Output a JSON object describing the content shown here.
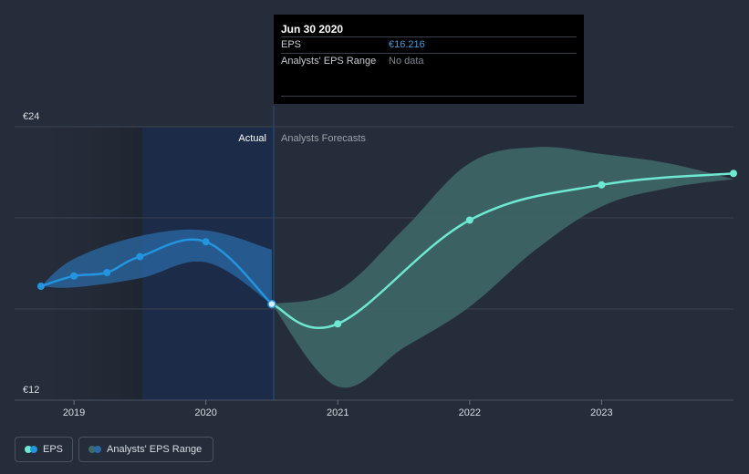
{
  "tooltip": {
    "date": "Jun 30 2020",
    "eps_label": "EPS",
    "eps_value": "€16.216",
    "range_label": "Analysts' EPS Range",
    "range_value": "No data"
  },
  "labels": {
    "actual": "Actual",
    "forecast": "Analysts Forecasts"
  },
  "legend": {
    "eps": "EPS",
    "range": "Analysts' EPS Range"
  },
  "colors": {
    "background": "#262d3a",
    "eps_actual": "#2394df",
    "eps_forecast": "#6ee8d1",
    "range_actual": "#2a6aa6",
    "range_forecast": "#3f6b6a",
    "highlight": "#1b2c4a"
  },
  "chart_data": {
    "type": "line",
    "y_tick_labels": [
      "€24",
      "€12"
    ],
    "ylim": [
      12,
      24
    ],
    "x_tick_labels": [
      "2019",
      "2020",
      "2021",
      "2022",
      "2023"
    ],
    "xlim": [
      2018.55,
      2024.0
    ],
    "divider_x": 2020.5,
    "grid": true,
    "series": [
      {
        "name": "EPS",
        "segment": "actual",
        "x": [
          2018.75,
          2019.0,
          2019.25,
          2019.5,
          2020.0,
          2020.5
        ],
        "y": [
          17.0,
          17.45,
          17.6,
          18.3,
          18.95,
          16.216
        ]
      },
      {
        "name": "EPS",
        "segment": "forecast",
        "x": [
          2020.5,
          2021.0,
          2022.0,
          2023.0,
          2024.0
        ],
        "y": [
          16.216,
          15.35,
          19.9,
          21.45,
          21.95
        ]
      }
    ],
    "ranges": [
      {
        "name": "Analysts' EPS Range",
        "segment": "actual",
        "x": [
          2018.75,
          2019.0,
          2019.5,
          2020.0,
          2020.5
        ],
        "upper": [
          17.0,
          18.2,
          19.2,
          19.45,
          18.6
        ],
        "lower": [
          17.0,
          16.95,
          17.35,
          18.05,
          16.216
        ]
      },
      {
        "name": "Analysts' EPS Range",
        "segment": "forecast",
        "x": [
          2020.5,
          2021.0,
          2021.5,
          2022.0,
          2022.5,
          2023.0,
          2023.5,
          2024.0
        ],
        "upper": [
          16.216,
          16.8,
          19.5,
          22.4,
          23.1,
          22.8,
          22.4,
          21.7
        ],
        "lower": [
          16.216,
          12.6,
          14.3,
          16.1,
          18.6,
          20.5,
          21.3,
          21.7
        ]
      }
    ]
  }
}
